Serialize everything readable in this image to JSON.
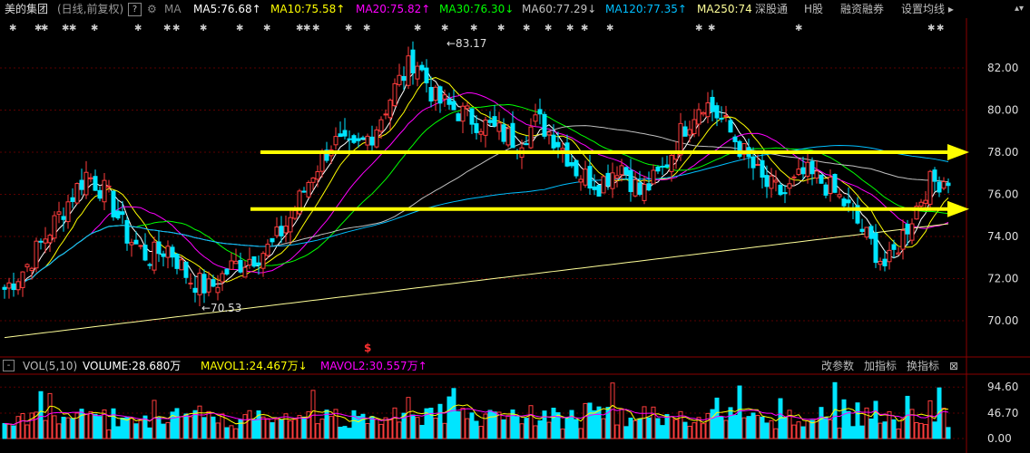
{
  "header": {
    "stock_name": "美的集团",
    "period_label": "(日线,前复权)",
    "help_icon": "?",
    "gear_icon": "gear-icon",
    "ma_label": "MA",
    "ma5": "MA5:76.68",
    "ma10": "MA10:75.58",
    "ma20": "MA20:75.82",
    "ma30": "MA30:76.30",
    "ma60": "MA60:77.29",
    "ma120": "MA120:77.35",
    "ma250": "MA250:74",
    "up_arrow": "↑",
    "down_arrow": "↓",
    "tab_shenhk": "深股通",
    "tab_h": "H股",
    "tab_margin": "融资融券",
    "settings": "设置均线"
  },
  "colors": {
    "ma5": "#ffffff",
    "ma10": "#ffff00",
    "ma20": "#ff00ff",
    "ma30": "#00ff00",
    "ma60": "#c0c0c0",
    "ma120": "#00bfff",
    "ma250": "#ffff99",
    "up": "#ff3c3c",
    "down": "#00e5ff",
    "arrow": "#ffff00"
  },
  "price_axis": {
    "ticks": [
      "82.00",
      "80.00",
      "78.00",
      "76.00",
      "74.00",
      "72.00",
      "70.00"
    ],
    "high_label": "83.17",
    "low_label": "70.53",
    "dollar_marker": "$"
  },
  "volume_panel": {
    "toggle": "-",
    "vol_label": "VOL(5,10)",
    "volume": "VOLUME:28.680万",
    "mavol1": "MAVOL1:24.467万",
    "mavol2": "MAVOL2:30.557万",
    "btn_params": "改参数",
    "btn_add": "加指标",
    "btn_switch": "换指标",
    "ticks": [
      "94.60",
      "46.70",
      "0.00"
    ]
  },
  "chart_data": {
    "type": "candlestick",
    "price_range": [
      69.0,
      84.0
    ],
    "volume_range": [
      0,
      110
    ],
    "price_ticks": [
      70,
      72,
      74,
      76,
      78,
      80,
      82
    ],
    "volume_ticks": [
      0,
      46.7,
      94.6
    ],
    "ma_values": {
      "MA5": 76.68,
      "MA10": 75.58,
      "MA20": 75.82,
      "MA30": 76.3,
      "MA60": 77.29,
      "MA120": 77.35,
      "MA250": 74
    },
    "annotations": [
      {
        "text": "83.17",
        "type": "max"
      },
      {
        "text": "70.53",
        "type": "min"
      }
    ],
    "horizontal_arrows": [
      78.0,
      75.3
    ],
    "legend": [
      "MA5",
      "MA10",
      "MA20",
      "MA30",
      "MA60",
      "MA120",
      "MA250"
    ],
    "close_profile": [
      71.5,
      72.5,
      74.0,
      75.5,
      77.0,
      76.0,
      74.0,
      73.0,
      73.5,
      72.0,
      71.5,
      72.5,
      73.0,
      73.5,
      75.0,
      77.0,
      78.5,
      78.0,
      79.0,
      81.0,
      82.5,
      80.5,
      80.0,
      79.5,
      79.0,
      78.5,
      79.5,
      78.5,
      77.0,
      76.5,
      77.5,
      76.0,
      77.0,
      79.0,
      80.5,
      79.5,
      78.0,
      76.5,
      76.0,
      77.0,
      76.5,
      75.5,
      74.0,
      72.5,
      74.5,
      76.5,
      76.8
    ]
  }
}
